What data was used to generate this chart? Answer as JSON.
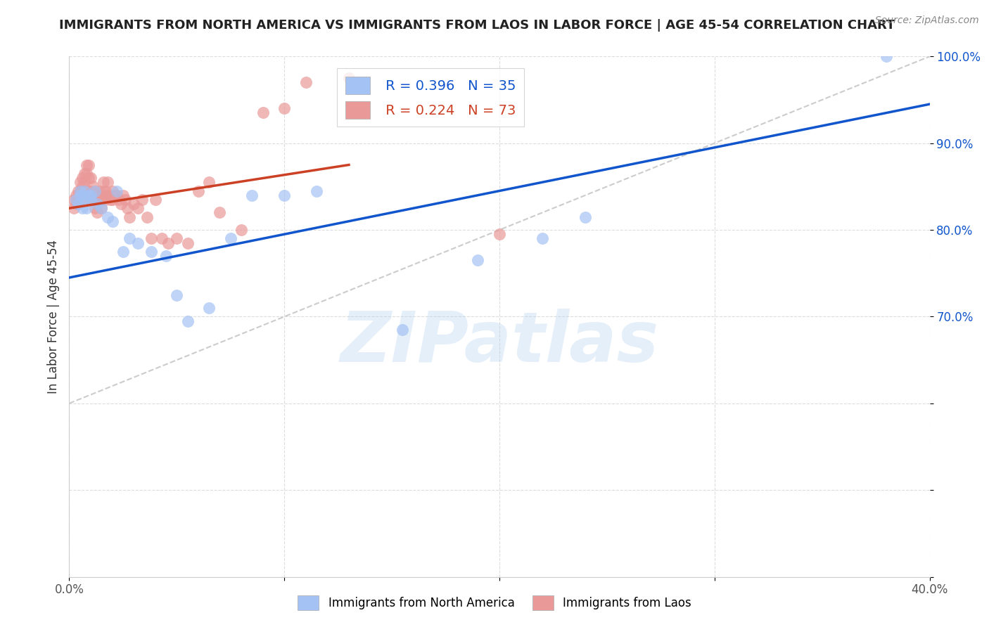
{
  "title": "IMMIGRANTS FROM NORTH AMERICA VS IMMIGRANTS FROM LAOS IN LABOR FORCE | AGE 45-54 CORRELATION CHART",
  "source": "Source: ZipAtlas.com",
  "ylabel": "In Labor Force | Age 45-54",
  "xlim": [
    0.0,
    0.4
  ],
  "ylim": [
    0.4,
    1.0
  ],
  "blue_R": 0.396,
  "blue_N": 35,
  "pink_R": 0.224,
  "pink_N": 73,
  "blue_color": "#a4c2f4",
  "pink_color": "#ea9999",
  "blue_line_color": "#1155cc",
  "pink_line_color": "#cc4125",
  "diag_line_color": "#cccccc",
  "watermark": "ZIPatlas",
  "blue_scatter_x": [
    0.003,
    0.004,
    0.005,
    0.005,
    0.006,
    0.006,
    0.007,
    0.007,
    0.008,
    0.009,
    0.01,
    0.01,
    0.012,
    0.013,
    0.015,
    0.018,
    0.02,
    0.022,
    0.025,
    0.028,
    0.032,
    0.038,
    0.045,
    0.05,
    0.055,
    0.065,
    0.075,
    0.085,
    0.1,
    0.115,
    0.155,
    0.19,
    0.22,
    0.24,
    0.38
  ],
  "blue_scatter_y": [
    0.835,
    0.83,
    0.845,
    0.84,
    0.825,
    0.84,
    0.845,
    0.835,
    0.825,
    0.84,
    0.84,
    0.835,
    0.845,
    0.83,
    0.825,
    0.815,
    0.81,
    0.845,
    0.775,
    0.79,
    0.785,
    0.775,
    0.77,
    0.725,
    0.695,
    0.71,
    0.79,
    0.84,
    0.84,
    0.845,
    0.685,
    0.765,
    0.79,
    0.815,
    1.0
  ],
  "pink_scatter_x": [
    0.002,
    0.002,
    0.003,
    0.003,
    0.004,
    0.005,
    0.005,
    0.005,
    0.006,
    0.006,
    0.006,
    0.007,
    0.007,
    0.007,
    0.008,
    0.008,
    0.008,
    0.009,
    0.009,
    0.009,
    0.01,
    0.01,
    0.01,
    0.011,
    0.011,
    0.011,
    0.012,
    0.012,
    0.012,
    0.013,
    0.013,
    0.013,
    0.014,
    0.014,
    0.015,
    0.015,
    0.015,
    0.016,
    0.016,
    0.017,
    0.017,
    0.018,
    0.018,
    0.019,
    0.02,
    0.02,
    0.021,
    0.022,
    0.023,
    0.024,
    0.025,
    0.026,
    0.027,
    0.028,
    0.03,
    0.032,
    0.034,
    0.036,
    0.038,
    0.04,
    0.043,
    0.046,
    0.05,
    0.055,
    0.06,
    0.065,
    0.07,
    0.08,
    0.09,
    0.1,
    0.11,
    0.13,
    0.2
  ],
  "pink_scatter_y": [
    0.835,
    0.825,
    0.84,
    0.83,
    0.845,
    0.855,
    0.845,
    0.835,
    0.86,
    0.85,
    0.84,
    0.865,
    0.855,
    0.845,
    0.875,
    0.865,
    0.845,
    0.875,
    0.86,
    0.845,
    0.86,
    0.845,
    0.835,
    0.85,
    0.84,
    0.835,
    0.845,
    0.835,
    0.825,
    0.84,
    0.83,
    0.82,
    0.845,
    0.835,
    0.84,
    0.835,
    0.825,
    0.855,
    0.845,
    0.845,
    0.835,
    0.855,
    0.84,
    0.835,
    0.845,
    0.835,
    0.84,
    0.84,
    0.835,
    0.83,
    0.84,
    0.835,
    0.825,
    0.815,
    0.83,
    0.825,
    0.835,
    0.815,
    0.79,
    0.835,
    0.79,
    0.785,
    0.79,
    0.785,
    0.845,
    0.855,
    0.82,
    0.8,
    0.935,
    0.94,
    0.97,
    0.975,
    0.795
  ],
  "blue_line_x": [
    0.0,
    0.4
  ],
  "blue_line_y": [
    0.745,
    0.945
  ],
  "pink_line_x": [
    0.0,
    0.13
  ],
  "pink_line_y": [
    0.825,
    0.875
  ]
}
